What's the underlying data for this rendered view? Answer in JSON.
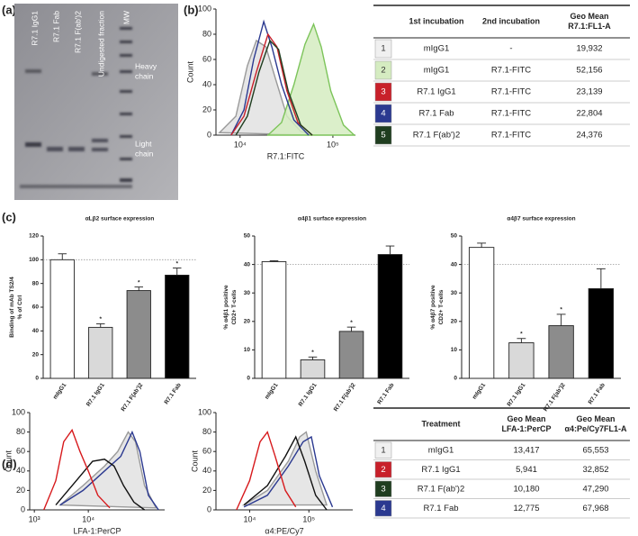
{
  "panel_labels": [
    "(a)",
    "(b)",
    "(c)",
    "(d)"
  ],
  "gel": {
    "lanes": [
      "R7.1 IgG1",
      "R7.1 Fab",
      "R7.1 F(ab')2",
      "Undigested fraction",
      "MW"
    ],
    "bands": [
      [
        "Heavy",
        "chain"
      ],
      [
        "Light",
        "chain"
      ]
    ]
  },
  "chart_data": [
    {
      "type": "line",
      "x_label": "R7.1:FITC",
      "y_label": "Count",
      "x_log": true,
      "xlim": [
        5500,
        175000
      ],
      "xticks": [
        {
          "value": 10000,
          "label": "10⁴"
        },
        {
          "value": 100000,
          "label": "10⁵"
        }
      ],
      "ylim": [
        0,
        100
      ],
      "yticks": [
        0,
        20,
        40,
        60,
        80,
        100
      ],
      "series": [
        {
          "color": "#9a9a9a",
          "fill": "#e2e2e2",
          "x": [
            6000,
            9000,
            12000,
            15000,
            19000,
            24000,
            32000,
            45000,
            60000
          ],
          "values": [
            2,
            15,
            55,
            75,
            70,
            45,
            15,
            3,
            0
          ]
        },
        {
          "color": "#7cc45a",
          "fill": "#d5ecc1",
          "x": [
            20000,
            28000,
            38000,
            50000,
            62000,
            75000,
            95000,
            130000,
            170000
          ],
          "values": [
            0,
            10,
            40,
            72,
            88,
            70,
            35,
            8,
            0
          ]
        },
        {
          "color": "#2b3990",
          "x": [
            8000,
            11000,
            14000,
            18000,
            22000,
            28000,
            38000,
            55000
          ],
          "values": [
            0,
            20,
            60,
            90,
            70,
            40,
            12,
            0
          ]
        },
        {
          "color": "#c8202a",
          "x": [
            8000,
            11000,
            15000,
            20000,
            25000,
            32000,
            42000,
            60000
          ],
          "values": [
            0,
            15,
            50,
            80,
            70,
            35,
            10,
            0
          ]
        },
        {
          "color": "#1f3d1f",
          "x": [
            9000,
            12000,
            16000,
            21000,
            26000,
            33000,
            45000,
            60000
          ],
          "values": [
            0,
            15,
            50,
            75,
            68,
            35,
            8,
            0
          ]
        }
      ]
    },
    {
      "type": "bar",
      "title": "αLβ2 surface expression",
      "y_label": [
        "Binding of mAb TS2/4",
        "% of Ctrl"
      ],
      "categories": [
        "mIgG1",
        "R7.1 IgG1",
        "R7.1 F(ab')2",
        "R7.1 Fab"
      ],
      "values": [
        100,
        43,
        74,
        87
      ],
      "errors": [
        5,
        3,
        3,
        6
      ],
      "colors": [
        "#ffffff",
        "#d9d9d9",
        "#8c8c8c",
        "#000000"
      ],
      "significance": [
        null,
        "*",
        "*",
        "*"
      ],
      "reference_line": 100,
      "ylim": [
        0,
        120
      ],
      "yticks": [
        0,
        20,
        40,
        60,
        80,
        100,
        120
      ]
    },
    {
      "type": "bar",
      "title": "α4β1 surface expression",
      "y_label": [
        "% α4β1 positive",
        "CD2+ T-cells"
      ],
      "categories": [
        "mIgG1",
        "R7.1 IgG1",
        "R7.1 F(ab')2",
        "R7.1 Fab"
      ],
      "values": [
        41,
        6.5,
        16.5,
        43.5
      ],
      "errors": [
        0.3,
        1,
        1.5,
        3
      ],
      "colors": [
        "#ffffff",
        "#d9d9d9",
        "#8c8c8c",
        "#000000"
      ],
      "significance": [
        null,
        "*",
        "*",
        null
      ],
      "reference_line": 40,
      "ylim": [
        0,
        50
      ],
      "yticks": [
        0,
        10,
        20,
        30,
        40,
        50
      ]
    },
    {
      "type": "bar",
      "title": "α4β7 surface expression",
      "y_label": [
        "% α4β7 positive",
        "CD2+ T-cells"
      ],
      "categories": [
        "mIgG1",
        "R7.1 IgG1",
        "R7.1 F(ab')2",
        "R7.1 Fab"
      ],
      "values": [
        46,
        12.5,
        18.5,
        31.5
      ],
      "errors": [
        1.5,
        1.5,
        4,
        7
      ],
      "colors": [
        "#ffffff",
        "#d9d9d9",
        "#8c8c8c",
        "#000000"
      ],
      "significance": [
        null,
        "*",
        "*",
        null
      ],
      "reference_line": 40,
      "ylim": [
        0,
        50
      ],
      "yticks": [
        0,
        10,
        20,
        30,
        40,
        50
      ]
    },
    {
      "type": "line",
      "x_label": "LFA-1:PerCP",
      "y_label": "Count",
      "x_log": true,
      "xlim": [
        820,
        260000
      ],
      "xticks": [
        {
          "value": 1000,
          "label": "10³"
        },
        {
          "value": 10000,
          "label": "10⁴"
        }
      ],
      "ylim": [
        0,
        100
      ],
      "yticks": [
        0,
        20,
        40,
        60,
        80,
        100
      ],
      "series": [
        {
          "color": "#9a9a9a",
          "fill": "#e2e2e2",
          "x": [
            3000,
            8000,
            20000,
            35000,
            55000,
            75000,
            110000,
            180000
          ],
          "values": [
            5,
            25,
            45,
            60,
            80,
            70,
            25,
            2
          ]
        },
        {
          "color": "#2b3990",
          "x": [
            3000,
            8000,
            20000,
            40000,
            65000,
            90000,
            130000,
            200000
          ],
          "values": [
            5,
            20,
            40,
            55,
            80,
            60,
            15,
            0
          ]
        },
        {
          "color": "#111111",
          "x": [
            2500,
            6000,
            12000,
            20000,
            30000,
            45000,
            70000,
            110000
          ],
          "values": [
            5,
            30,
            50,
            52,
            45,
            25,
            8,
            0
          ]
        },
        {
          "color": "#d7191c",
          "x": [
            1500,
            2500,
            3500,
            5000,
            7000,
            10000,
            15000,
            25000
          ],
          "values": [
            0,
            30,
            70,
            82,
            60,
            40,
            15,
            2
          ]
        }
      ]
    },
    {
      "type": "line",
      "x_label": "α4:PE/Cy7",
      "y_label": "Count",
      "x_log": true,
      "xlim": [
        2700,
        550000
      ],
      "xticks": [
        {
          "value": 10000,
          "label": "10⁴"
        },
        {
          "value": 100000,
          "label": "10⁵"
        }
      ],
      "ylim": [
        0,
        100
      ],
      "yticks": [
        0,
        20,
        40,
        60,
        80,
        100
      ],
      "series": [
        {
          "color": "#9a9a9a",
          "fill": "#e2e2e2",
          "x": [
            8000,
            20000,
            45000,
            70000,
            90000,
            130000,
            200000
          ],
          "values": [
            5,
            20,
            50,
            75,
            80,
            40,
            5
          ]
        },
        {
          "color": "#2b3990",
          "x": [
            8000,
            20000,
            45000,
            80000,
            110000,
            150000,
            250000
          ],
          "values": [
            3,
            15,
            45,
            70,
            75,
            35,
            3
          ]
        },
        {
          "color": "#111111",
          "x": [
            8000,
            20000,
            40000,
            60000,
            85000,
            130000,
            200000
          ],
          "values": [
            5,
            25,
            55,
            75,
            50,
            15,
            0
          ]
        },
        {
          "color": "#d7191c",
          "x": [
            6000,
            10000,
            15000,
            20000,
            27000,
            40000,
            60000
          ],
          "values": [
            0,
            30,
            70,
            80,
            55,
            20,
            3
          ]
        }
      ]
    }
  ],
  "table_b": {
    "headers": [
      [
        "1st incubation"
      ],
      [
        "2nd incubation"
      ],
      [
        "Geo Mean",
        "R7.1:FL1-A"
      ]
    ],
    "rows": [
      [
        "1",
        "mIgG1",
        "-",
        "19,932"
      ],
      [
        "2",
        "mIgG1",
        "R7.1-FITC",
        "52,156"
      ],
      [
        "3",
        "R7.1 IgG1",
        "R7.1-FITC",
        "23,139"
      ],
      [
        "4",
        "R7.1 Fab",
        "R7.1-FITC",
        "22,804"
      ],
      [
        "5",
        "R7.1 F(ab')2",
        "R7.1-FITC",
        "24,376"
      ]
    ],
    "badge_colors": [
      "#f0f0f0",
      "#d5ecc1",
      "#c8202a",
      "#2b3990",
      "#1f3d1f"
    ]
  },
  "table_d": {
    "headers": [
      [
        "Treatment"
      ],
      [
        "Geo Mean",
        "LFA-1:PerCP"
      ],
      [
        "Geo Mean",
        "α4:Pe/Cy7FL1-A"
      ]
    ],
    "rows": [
      [
        "1",
        "mIgG1",
        "13,417",
        "65,553"
      ],
      [
        "2",
        "R7.1 IgG1",
        "5,941",
        "32,852"
      ],
      [
        "3",
        "R7.1 F(ab')2",
        "10,180",
        "47,290"
      ],
      [
        "4",
        "R7.1 Fab",
        "12,775",
        "67,968"
      ]
    ],
    "badge_colors": [
      "#f0f0f0",
      "#c8202a",
      "#1f3d1f",
      "#2b3990"
    ]
  }
}
